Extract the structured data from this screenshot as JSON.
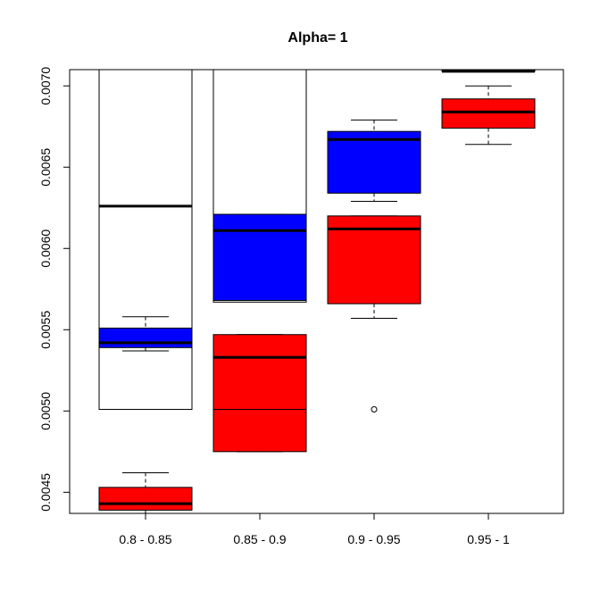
{
  "chart_data": {
    "type": "boxplot",
    "title": "Alpha= 1",
    "xlabel": "",
    "ylabel": "",
    "categories": [
      "0.8 - 0.85",
      "0.85 - 0.9",
      "0.9 - 0.95",
      "0.95 - 1"
    ],
    "ylim": [
      0.00437,
      0.0071
    ],
    "yticks": [
      0.0045,
      0.005,
      0.0055,
      0.006,
      0.0065,
      0.007
    ],
    "ytick_labels": [
      "0.0045",
      "0.0050",
      "0.0055",
      "0.0060",
      "0.0065",
      "0.0070"
    ],
    "grid": false,
    "series": [
      {
        "fill": "#ffffff",
        "boxes": [
          {
            "category": "0.8 - 0.85",
            "q1": 0.00501,
            "median": 0.00626,
            "q3": 0.0071,
            "whisker_low": null,
            "whisker_high": null,
            "outliers": []
          },
          {
            "category": "0.85 - 0.9",
            "q1": 0.00567,
            "median": null,
            "q3": 0.0071,
            "whisker_low": null,
            "whisker_high": null,
            "outliers": []
          }
        ]
      },
      {
        "fill": "#0000ff",
        "boxes": [
          {
            "category": "0.8 - 0.85",
            "q1": 0.00539,
            "median": 0.00542,
            "q3": 0.00551,
            "whisker_low": 0.00537,
            "whisker_high": 0.00558,
            "outliers": []
          },
          {
            "category": "0.85 - 0.9",
            "q1": 0.00568,
            "median": 0.00611,
            "q3": 0.00621,
            "whisker_low": 0.00568,
            "whisker_high": 0.00621,
            "outliers": []
          },
          {
            "category": "0.9 - 0.95",
            "q1": 0.00634,
            "median": 0.00667,
            "q3": 0.00672,
            "whisker_low": 0.00629,
            "whisker_high": 0.00679,
            "outliers": []
          },
          {
            "category": "0.95 - 1",
            "q1": 0.00709,
            "median": 0.00709,
            "q3": 0.0071,
            "whisker_low": 0.00709,
            "whisker_high": 0.0071,
            "outliers": []
          }
        ]
      },
      {
        "fill": "#ff0000",
        "boxes": [
          {
            "category": "0.8 - 0.85",
            "q1": 0.00439,
            "median": 0.00443,
            "q3": 0.00453,
            "whisker_low": 0.00436,
            "whisker_high": 0.00462,
            "outliers": []
          },
          {
            "category": "0.85 - 0.9",
            "q1": 0.00475,
            "median": 0.00533,
            "q3": 0.00547,
            "whisker_low": 0.00475,
            "whisker_high": 0.00547,
            "outliers": [],
            "extra_line": 0.00501
          },
          {
            "category": "0.9 - 0.95",
            "q1": 0.00566,
            "median": 0.00612,
            "q3": 0.0062,
            "whisker_low": 0.00557,
            "whisker_high": 0.0062,
            "outliers": [
              0.00501
            ]
          },
          {
            "category": "0.95 - 1",
            "q1": 0.00674,
            "median": 0.00684,
            "q3": 0.00692,
            "whisker_low": 0.00664,
            "whisker_high": 0.007,
            "outliers": []
          }
        ]
      }
    ]
  }
}
